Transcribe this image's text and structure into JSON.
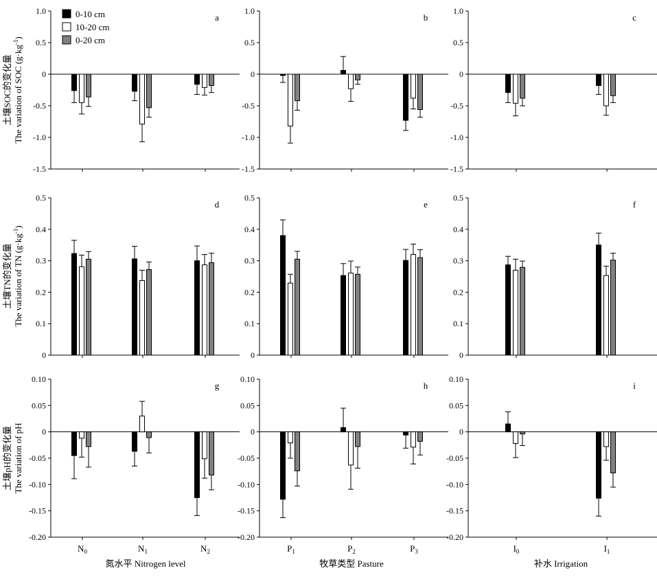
{
  "legend": [
    {
      "label": "0-10 cm",
      "color": "#000000"
    },
    {
      "label": "10-20 cm",
      "color": "#ffffff"
    },
    {
      "label": "0-20 cm",
      "color": "#808080"
    }
  ],
  "row_ylabels": [
    {
      "line1": "土壤SOC的变化量",
      "line2": "The variation of SOC (g·kg",
      "sup": "-1",
      "close": ")"
    },
    {
      "line1": "土壤TN的变化量",
      "line2": "The variation of TN (g·kg",
      "sup": "-1",
      "close": ")"
    },
    {
      "line1": "土壤pH的变化量",
      "line2": "The variation of pH",
      "sup": "",
      "close": ""
    }
  ],
  "col_xlabels": [
    "氮水平 Nitrogen level",
    "牧草类型 Pasture",
    "补水 Irrigation"
  ],
  "col_categories": [
    [
      {
        "base": "N",
        "sub": "0"
      },
      {
        "base": "N",
        "sub": "1"
      },
      {
        "base": "N",
        "sub": "2"
      }
    ],
    [
      {
        "base": "P",
        "sub": "1"
      },
      {
        "base": "P",
        "sub": "2"
      },
      {
        "base": "P",
        "sub": "3"
      }
    ],
    [
      {
        "base": "I",
        "sub": "0"
      },
      {
        "base": "I",
        "sub": "1"
      }
    ]
  ],
  "chart_data": [
    {
      "panel": "a",
      "type": "bar",
      "ylim": [
        -1.5,
        1.0
      ],
      "yticks": [
        "1.0",
        "0.5",
        "0",
        "-0.5",
        "-1.0",
        "-1.5"
      ],
      "categories": [
        "N0",
        "N1",
        "N2"
      ],
      "series": [
        {
          "name": "0-10 cm",
          "values": [
            -0.26,
            -0.27,
            -0.16
          ],
          "errors": [
            0.19,
            0.15,
            0.16
          ]
        },
        {
          "name": "10-20 cm",
          "values": [
            -0.45,
            -0.79,
            -0.21
          ],
          "errors": [
            0.18,
            0.28,
            0.12
          ]
        },
        {
          "name": "0-20 cm",
          "values": [
            -0.36,
            -0.53,
            -0.18
          ],
          "errors": [
            0.15,
            0.15,
            0.11
          ]
        }
      ]
    },
    {
      "panel": "b",
      "type": "bar",
      "ylim": [
        -1.5,
        1.0
      ],
      "yticks": [
        "1.0",
        "0.5",
        "0",
        "-0.5",
        "-1.0",
        "-1.5"
      ],
      "categories": [
        "P1",
        "P2",
        "P3"
      ],
      "series": [
        {
          "name": "0-10 cm",
          "values": [
            -0.02,
            0.06,
            -0.73
          ],
          "errors": [
            0.11,
            0.22,
            0.16
          ]
        },
        {
          "name": "10-20 cm",
          "values": [
            -0.82,
            -0.23,
            -0.38
          ],
          "errors": [
            0.27,
            0.2,
            0.17
          ]
        },
        {
          "name": "0-20 cm",
          "values": [
            -0.42,
            -0.09,
            -0.56
          ],
          "errors": [
            0.15,
            0.07,
            0.12
          ]
        }
      ]
    },
    {
      "panel": "c",
      "type": "bar",
      "ylim": [
        -1.5,
        1.0
      ],
      "yticks": [
        "1.0",
        "0.5",
        "0",
        "-0.5",
        "-1.0",
        "-1.5"
      ],
      "categories": [
        "I0",
        "I1"
      ],
      "series": [
        {
          "name": "0-10 cm",
          "values": [
            -0.29,
            -0.18
          ],
          "errors": [
            0.16,
            0.14
          ]
        },
        {
          "name": "10-20 cm",
          "values": [
            -0.46,
            -0.5
          ],
          "errors": [
            0.2,
            0.15
          ]
        },
        {
          "name": "0-20 cm",
          "values": [
            -0.38,
            -0.34
          ],
          "errors": [
            0.12,
            0.11
          ]
        }
      ]
    },
    {
      "panel": "d",
      "type": "bar",
      "ylim": [
        0,
        0.5
      ],
      "yticks": [
        "0.5",
        "0.4",
        "0.3",
        "0.2",
        "0.1",
        "0"
      ],
      "categories": [
        "N0",
        "N1",
        "N2"
      ],
      "series": [
        {
          "name": "0-10 cm",
          "values": [
            0.323,
            0.306,
            0.3
          ],
          "errors": [
            0.042,
            0.04,
            0.047
          ]
        },
        {
          "name": "10-20 cm",
          "values": [
            0.281,
            0.237,
            0.287
          ],
          "errors": [
            0.037,
            0.033,
            0.033
          ]
        },
        {
          "name": "0-20 cm",
          "values": [
            0.305,
            0.272,
            0.294
          ],
          "errors": [
            0.024,
            0.024,
            0.03
          ]
        }
      ]
    },
    {
      "panel": "e",
      "type": "bar",
      "ylim": [
        0,
        0.5
      ],
      "yticks": [
        "0.5",
        "0.4",
        "0.3",
        "0.2",
        "0.1",
        "0"
      ],
      "categories": [
        "P1",
        "P2",
        "P3"
      ],
      "series": [
        {
          "name": "0-10 cm",
          "values": [
            0.38,
            0.253,
            0.301
          ],
          "errors": [
            0.05,
            0.038,
            0.035
          ]
        },
        {
          "name": "10-20 cm",
          "values": [
            0.229,
            0.261,
            0.32
          ],
          "errors": [
            0.028,
            0.038,
            0.033
          ]
        },
        {
          "name": "0-20 cm",
          "values": [
            0.305,
            0.257,
            0.31
          ],
          "errors": [
            0.025,
            0.023,
            0.025
          ]
        }
      ]
    },
    {
      "panel": "f",
      "type": "bar",
      "ylim": [
        0,
        0.5
      ],
      "yticks": [
        "0.5",
        "0.4",
        "0.3",
        "0.2",
        "0.1",
        "0"
      ],
      "categories": [
        "I0",
        "I1"
      ],
      "series": [
        {
          "name": "0-10 cm",
          "values": [
            0.287,
            0.35
          ],
          "errors": [
            0.027,
            0.038
          ]
        },
        {
          "name": "10-20 cm",
          "values": [
            0.27,
            0.253
          ],
          "errors": [
            0.035,
            0.03
          ]
        },
        {
          "name": "0-20 cm",
          "values": [
            0.279,
            0.302
          ],
          "errors": [
            0.02,
            0.022
          ]
        }
      ]
    },
    {
      "panel": "g",
      "type": "bar",
      "ylim": [
        -0.2,
        0.1
      ],
      "yticks": [
        "0.10",
        "0.05",
        "0",
        "-0.05",
        "-0.10",
        "-0.15",
        "-0.20"
      ],
      "categories": [
        "N0",
        "N1",
        "N2"
      ],
      "series": [
        {
          "name": "0-10 cm",
          "values": [
            -0.045,
            -0.037,
            -0.125
          ],
          "errors": [
            0.044,
            0.028,
            0.034
          ]
        },
        {
          "name": "10-20 cm",
          "values": [
            -0.012,
            0.03,
            -0.051
          ],
          "errors": [
            0.036,
            0.028,
            0.037
          ]
        },
        {
          "name": "0-20 cm",
          "values": [
            -0.028,
            -0.011,
            -0.082
          ],
          "errors": [
            0.039,
            0.029,
            0.028
          ]
        }
      ]
    },
    {
      "panel": "h",
      "type": "bar",
      "ylim": [
        -0.2,
        0.1
      ],
      "yticks": [
        "0.10",
        "0.05",
        "0",
        "-0.05",
        "-0.10",
        "-0.15",
        "-0.20"
      ],
      "categories": [
        "P1",
        "P2",
        "P3"
      ],
      "series": [
        {
          "name": "0-10 cm",
          "values": [
            -0.128,
            0.008,
            -0.006
          ],
          "errors": [
            0.035,
            0.037,
            0.025
          ]
        },
        {
          "name": "10-20 cm",
          "values": [
            -0.021,
            -0.063,
            -0.029
          ],
          "errors": [
            0.029,
            0.046,
            0.032
          ]
        },
        {
          "name": "0-20 cm",
          "values": [
            -0.074,
            -0.028,
            -0.018
          ],
          "errors": [
            0.029,
            0.041,
            0.026
          ]
        }
      ]
    },
    {
      "panel": "i",
      "type": "bar",
      "ylim": [
        -0.2,
        0.1
      ],
      "yticks": [
        "0.10",
        "0.05",
        "0",
        "-0.05",
        "-0.10",
        "-0.15",
        "-0.20"
      ],
      "categories": [
        "I0",
        "I1"
      ],
      "series": [
        {
          "name": "0-10 cm",
          "values": [
            0.015,
            -0.126
          ],
          "errors": [
            0.023,
            0.034
          ]
        },
        {
          "name": "10-20 cm",
          "values": [
            -0.022,
            -0.028
          ],
          "errors": [
            0.027,
            0.026
          ]
        },
        {
          "name": "0-20 cm",
          "values": [
            -0.004,
            -0.078
          ],
          "errors": [
            0.022,
            0.027
          ]
        }
      ]
    }
  ]
}
